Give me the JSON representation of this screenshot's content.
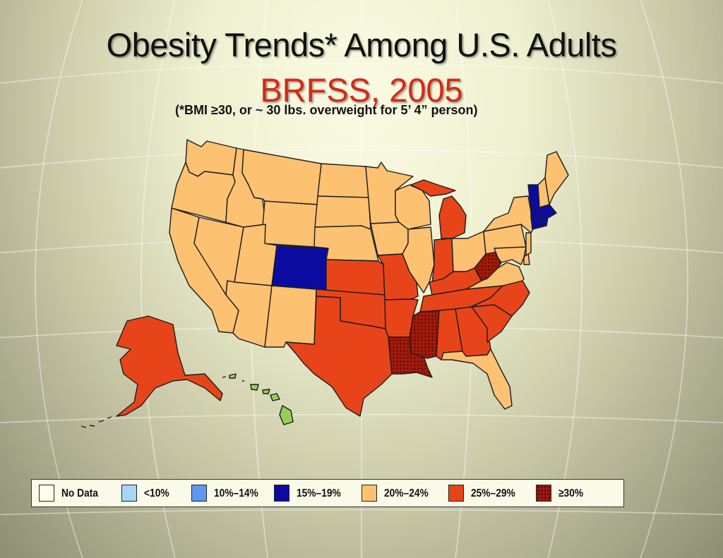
{
  "title": "Obesity Trends* Among U.S. Adults",
  "subtitle": "BRFSS, 2005",
  "footnote": "(*BMI ≥30, or ~ 30 lbs. overweight for 5’ 4” person)",
  "colors": {
    "no_data": "#ffffe8",
    "lt10": "#a9d4f6",
    "10_14": "#5e98f2",
    "15_19": "#0b0ba0",
    "20_24": "#fdc172",
    "25_29": "#e8441a",
    "gte30": "#a11a0c",
    "hawaii": "#96cf56"
  },
  "legend": [
    {
      "label": "No Data",
      "category": "no_data"
    },
    {
      "label": "<10%",
      "category": "lt10"
    },
    {
      "label": "10%–14%",
      "category": "10_14"
    },
    {
      "label": "15%–19%",
      "category": "15_19"
    },
    {
      "label": "20%–24%",
      "category": "20_24"
    },
    {
      "label": "25%–29%",
      "category": "25_29"
    },
    {
      "label": "≥30%",
      "category": "gte30"
    }
  ],
  "states": [
    {
      "code": "WA",
      "category": "20_24"
    },
    {
      "code": "OR",
      "category": "20_24"
    },
    {
      "code": "CA",
      "category": "20_24"
    },
    {
      "code": "ID",
      "category": "20_24"
    },
    {
      "code": "NV",
      "category": "20_24"
    },
    {
      "code": "MT",
      "category": "20_24"
    },
    {
      "code": "WY",
      "category": "20_24"
    },
    {
      "code": "UT",
      "category": "20_24"
    },
    {
      "code": "AZ",
      "category": "20_24"
    },
    {
      "code": "CO",
      "category": "15_19"
    },
    {
      "code": "NM",
      "category": "20_24"
    },
    {
      "code": "ND",
      "category": "20_24"
    },
    {
      "code": "SD",
      "category": "20_24"
    },
    {
      "code": "NE",
      "category": "20_24"
    },
    {
      "code": "KS",
      "category": "25_29"
    },
    {
      "code": "OK",
      "category": "25_29"
    },
    {
      "code": "TX",
      "category": "25_29"
    },
    {
      "code": "MN",
      "category": "20_24"
    },
    {
      "code": "IA",
      "category": "20_24"
    },
    {
      "code": "MO",
      "category": "25_29"
    },
    {
      "code": "AR",
      "category": "25_29"
    },
    {
      "code": "LA",
      "category": "gte30"
    },
    {
      "code": "WI",
      "category": "20_24"
    },
    {
      "code": "IL",
      "category": "20_24"
    },
    {
      "code": "MI",
      "category": "25_29"
    },
    {
      "code": "IN",
      "category": "25_29"
    },
    {
      "code": "OH",
      "category": "20_24"
    },
    {
      "code": "KY",
      "category": "25_29"
    },
    {
      "code": "TN",
      "category": "25_29"
    },
    {
      "code": "MS",
      "category": "gte30"
    },
    {
      "code": "AL",
      "category": "25_29"
    },
    {
      "code": "GA",
      "category": "25_29"
    },
    {
      "code": "FL",
      "category": "20_24"
    },
    {
      "code": "SC",
      "category": "25_29"
    },
    {
      "code": "NC",
      "category": "25_29"
    },
    {
      "code": "VA",
      "category": "20_24"
    },
    {
      "code": "WV",
      "category": "gte30"
    },
    {
      "code": "PA",
      "category": "20_24"
    },
    {
      "code": "NY",
      "category": "20_24"
    },
    {
      "code": "NJ",
      "category": "20_24"
    },
    {
      "code": "DE",
      "category": "20_24"
    },
    {
      "code": "MD",
      "category": "20_24"
    },
    {
      "code": "VT",
      "category": "15_19"
    },
    {
      "code": "NH",
      "category": "20_24"
    },
    {
      "code": "ME",
      "category": "20_24"
    },
    {
      "code": "MA",
      "category": "15_19"
    },
    {
      "code": "CT",
      "category": "15_19"
    },
    {
      "code": "RI",
      "category": "15_19"
    },
    {
      "code": "AK",
      "category": "25_29"
    },
    {
      "code": "HI",
      "category": "hawaii"
    }
  ]
}
